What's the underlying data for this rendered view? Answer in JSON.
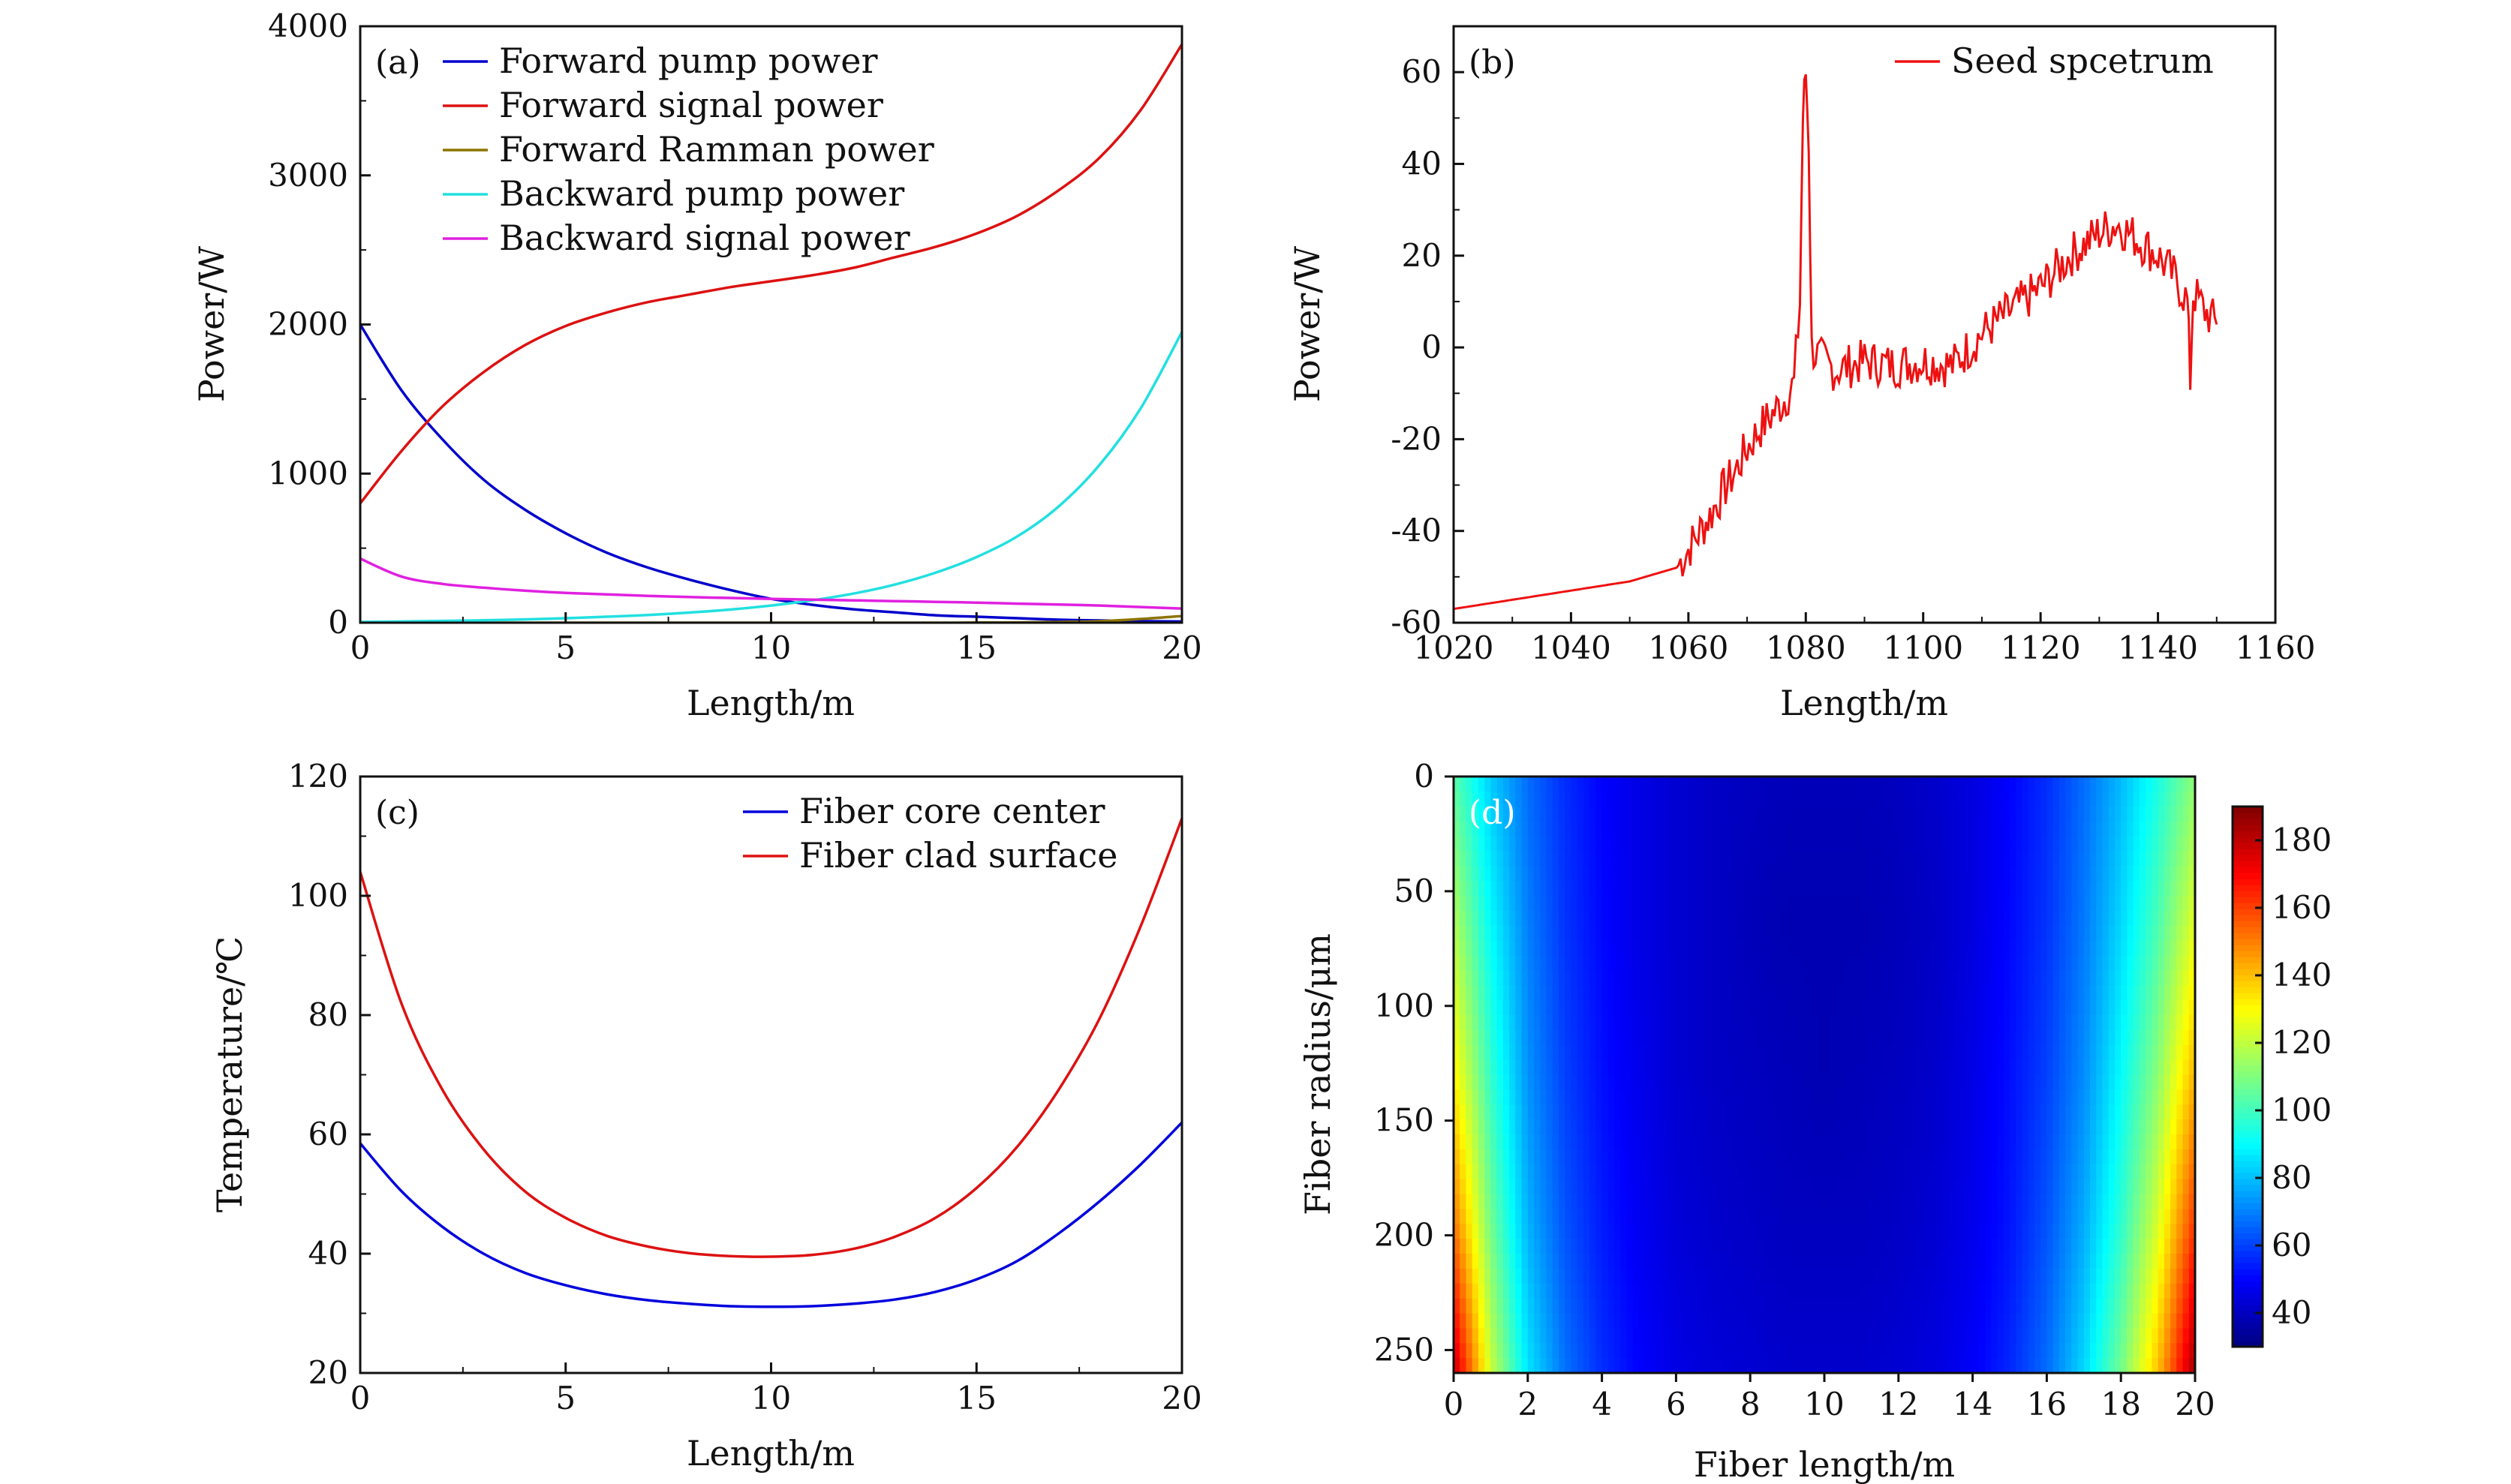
{
  "chart_data": [
    {
      "panel": "(a)",
      "type": "line",
      "xlabel": "Length/m",
      "ylabel": "Power/W",
      "xlim": [
        0,
        20
      ],
      "ylim": [
        0,
        4000
      ],
      "xticks": [
        0,
        5,
        10,
        15,
        20
      ],
      "yticks": [
        0,
        1000,
        2000,
        3000,
        4000
      ],
      "legend_position": "top-left",
      "grid": false,
      "x": [
        0,
        1,
        2,
        3,
        4,
        5,
        6,
        7,
        8,
        9,
        10,
        11,
        12,
        13,
        14,
        15,
        16,
        17,
        18,
        19,
        20
      ],
      "series": [
        {
          "name": "Forward pump power",
          "color": "#0000cc",
          "values": [
            2000,
            1560,
            1230,
            960,
            760,
            600,
            470,
            370,
            290,
            220,
            160,
            120,
            90,
            70,
            50,
            40,
            30,
            20,
            15,
            10,
            8
          ]
        },
        {
          "name": "Forward signal power",
          "color": "#dd1111",
          "values": [
            800,
            1150,
            1450,
            1680,
            1860,
            1990,
            2080,
            2150,
            2200,
            2250,
            2290,
            2330,
            2380,
            2450,
            2520,
            2610,
            2730,
            2900,
            3120,
            3440,
            3880
          ]
        },
        {
          "name": "Forward Ramman power",
          "color": "#8c7400",
          "values": [
            0,
            0,
            0,
            0,
            0,
            0,
            0,
            0,
            0,
            0,
            0,
            0,
            0,
            0,
            0,
            1,
            2,
            5,
            10,
            25,
            45
          ]
        },
        {
          "name": "Backward pump power",
          "color": "#22e0e0",
          "values": [
            5,
            8,
            12,
            16,
            22,
            30,
            40,
            52,
            68,
            88,
            115,
            150,
            195,
            255,
            335,
            440,
            580,
            780,
            1060,
            1440,
            1950
          ]
        },
        {
          "name": "Backward signal power",
          "color": "#e020e0",
          "values": [
            430,
            310,
            260,
            235,
            215,
            200,
            190,
            180,
            172,
            166,
            160,
            155,
            150,
            145,
            140,
            135,
            128,
            122,
            115,
            105,
            95
          ]
        }
      ]
    },
    {
      "panel": "(b)",
      "type": "line",
      "xlabel": "Length/m",
      "ylabel": "Power/W",
      "xlim": [
        1020,
        1160
      ],
      "ylim": [
        -60,
        70
      ],
      "xticks": [
        1020,
        1040,
        1060,
        1080,
        1100,
        1120,
        1140,
        1160
      ],
      "yticks": [
        -60,
        -40,
        -20,
        0,
        20,
        40,
        60
      ],
      "legend_position": "top-right",
      "grid": false,
      "series": [
        {
          "name": "Seed spcetrum",
          "color": "#ee1111",
          "x": [
            1020,
            1030,
            1040,
            1050,
            1058,
            1060,
            1062,
            1064,
            1066,
            1068,
            1070,
            1072,
            1074,
            1076,
            1078,
            1079,
            1079.5,
            1080,
            1080.5,
            1081,
            1082,
            1085,
            1090,
            1095,
            1100,
            1105,
            1110,
            1115,
            1120,
            1125,
            1130,
            1133,
            1136,
            1140,
            1143,
            1145,
            1145.5,
            1146,
            1148,
            1150
          ],
          "values": [
            -57,
            -55,
            -53,
            -51,
            -48,
            -44,
            -40,
            -36,
            -31,
            -27,
            -22,
            -18,
            -15,
            -12,
            -8,
            10,
            50,
            60,
            45,
            0,
            -2,
            -5,
            -3,
            -4,
            -3,
            -4,
            3,
            8,
            13,
            20,
            25,
            27,
            24,
            20,
            15,
            10,
            -7,
            12,
            8,
            5
          ]
        }
      ]
    },
    {
      "panel": "(c)",
      "type": "line",
      "xlabel": "Length/m",
      "ylabel": "Temperature/℃",
      "xlim": [
        0,
        20
      ],
      "ylim": [
        20,
        120
      ],
      "xticks": [
        0,
        5,
        10,
        15,
        20
      ],
      "yticks": [
        20,
        40,
        60,
        80,
        100,
        120
      ],
      "legend_position": "top-right",
      "grid": false,
      "x": [
        0,
        1,
        2,
        3,
        4,
        5,
        6,
        7,
        8,
        9,
        10,
        11,
        12,
        13,
        14,
        15,
        16,
        17,
        18,
        19,
        20
      ],
      "series": [
        {
          "name": "Fiber core center",
          "color": "#0000dd",
          "values": [
            58.5,
            50.5,
            44.5,
            40,
            36.8,
            34.7,
            33.2,
            32.2,
            31.6,
            31.2,
            31.1,
            31.2,
            31.6,
            32.3,
            33.6,
            35.7,
            38.8,
            43.4,
            48.8,
            55,
            62
          ]
        },
        {
          "name": "Fiber clad surface",
          "color": "#dd1111",
          "values": [
            104,
            82,
            67.5,
            57.5,
            50.5,
            46,
            43,
            41.2,
            40.1,
            39.6,
            39.5,
            39.8,
            40.8,
            42.8,
            46,
            51,
            58,
            67.5,
            79.5,
            95,
            113
          ]
        }
      ]
    },
    {
      "panel": "(d)",
      "type": "heatmap",
      "xlabel": "Fiber length/m",
      "ylabel": "Fiber radius/μm",
      "xlim": [
        0,
        20
      ],
      "ylim": [
        0,
        260
      ],
      "y_inverted": true,
      "xticks": [
        0,
        2,
        4,
        6,
        8,
        10,
        12,
        14,
        16,
        18,
        20
      ],
      "yticks": [
        0,
        50,
        100,
        150,
        200,
        250
      ],
      "colorbar": {
        "range": [
          30,
          190
        ],
        "ticks": [
          40,
          60,
          80,
          100,
          120,
          140,
          160,
          180
        ],
        "colormap": "jet"
      },
      "x": [
        0,
        1,
        2,
        3,
        4,
        5,
        6,
        7,
        8,
        9,
        10,
        11,
        12,
        13,
        14,
        15,
        16,
        17,
        18,
        19,
        20
      ],
      "y": [
        0,
        65,
        130,
        195,
        260
      ],
      "z": [
        [
          104,
          82,
          67,
          57,
          50,
          46,
          43,
          41,
          40,
          39,
          39,
          39,
          40,
          42,
          45,
          50,
          57,
          67,
          79,
          94,
          112
        ],
        [
          118,
          90,
          70,
          58,
          51,
          46,
          43,
          41,
          39,
          38,
          38,
          38,
          39,
          41,
          45,
          51,
          58,
          69,
          84,
          102,
          126
        ],
        [
          132,
          98,
          73,
          60,
          52,
          47,
          43,
          41,
          40,
          39,
          38,
          39,
          40,
          42,
          46,
          52,
          60,
          72,
          90,
          112,
          142
        ],
        [
          152,
          108,
          78,
          63,
          54,
          48,
          44,
          42,
          41,
          40,
          40,
          40,
          41,
          43,
          47,
          53,
          63,
          77,
          97,
          124,
          162
        ],
        [
          180,
          122,
          86,
          68,
          57,
          50,
          46,
          44,
          43,
          42,
          42,
          42,
          43,
          45,
          49,
          56,
          67,
          84,
          108,
          140,
          185
        ]
      ]
    }
  ]
}
